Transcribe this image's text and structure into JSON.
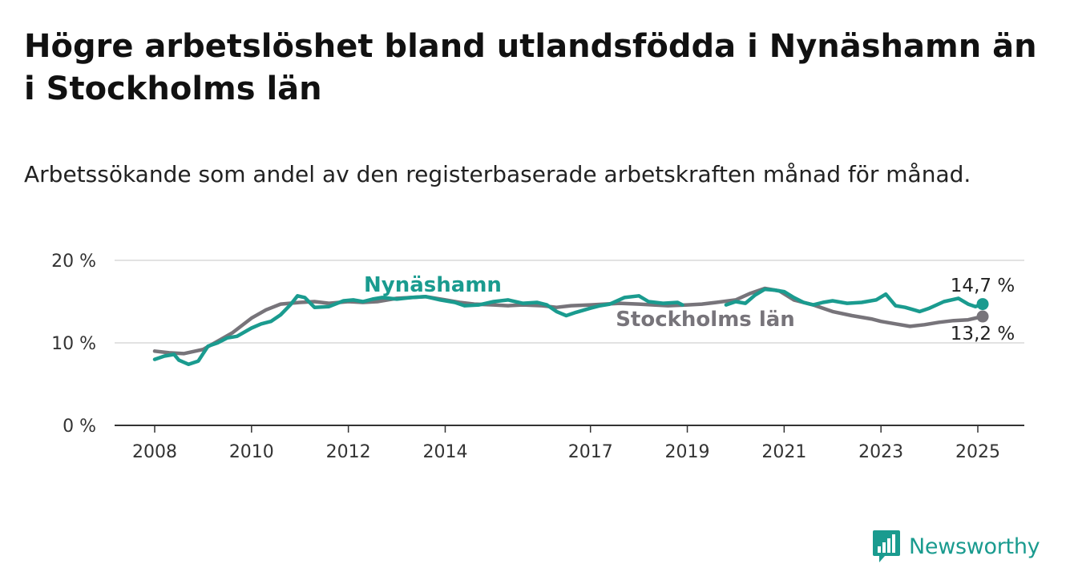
{
  "title": "Högre arbetslöshet bland utlandsfödda i Nynäshamn än i Stockholms län",
  "subtitle": "Arbetssökande som andel av den registerbaserade arbetskraften månad för månad.",
  "brand": {
    "name": "Newsworthy",
    "icon": "newsworthy-logo-icon",
    "color": "#1a9b8f"
  },
  "chart_data": {
    "type": "line",
    "x_range": [
      2008.0,
      2025.1
    ],
    "ylim": [
      0,
      20
    ],
    "y_ticks": [
      0,
      10,
      20
    ],
    "y_tick_labels": [
      "0 %",
      "10 %",
      "20 %"
    ],
    "x_ticks": [
      2008,
      2010,
      2012,
      2014,
      2017,
      2019,
      2021,
      2023,
      2025
    ],
    "x_tick_labels": [
      "2008",
      "2010",
      "2012",
      "2014",
      "2017",
      "2019",
      "2021",
      "2023",
      "2025"
    ],
    "grid": "horizontal",
    "series": [
      {
        "name": "Stockholms län",
        "color": "#77747a",
        "end_label": "13,2 %",
        "points": [
          [
            2008.0,
            9.0
          ],
          [
            2008.3,
            8.8
          ],
          [
            2008.6,
            8.7
          ],
          [
            2009.0,
            9.2
          ],
          [
            2009.3,
            10.2
          ],
          [
            2009.6,
            11.2
          ],
          [
            2010.0,
            13.0
          ],
          [
            2010.3,
            14.0
          ],
          [
            2010.6,
            14.7
          ],
          [
            2011.0,
            14.9
          ],
          [
            2011.3,
            15.0
          ],
          [
            2011.6,
            14.8
          ],
          [
            2012.0,
            15.0
          ],
          [
            2012.3,
            14.9
          ],
          [
            2012.6,
            15.0
          ],
          [
            2013.0,
            15.4
          ],
          [
            2013.3,
            15.5
          ],
          [
            2013.6,
            15.6
          ],
          [
            2014.0,
            15.2
          ],
          [
            2014.3,
            14.9
          ],
          [
            2014.6,
            14.7
          ],
          [
            2015.0,
            14.6
          ],
          [
            2015.3,
            14.5
          ],
          [
            2015.6,
            14.6
          ],
          [
            2016.0,
            14.5
          ],
          [
            2016.3,
            14.3
          ],
          [
            2016.6,
            14.5
          ],
          [
            2017.0,
            14.6
          ],
          [
            2017.3,
            14.7
          ],
          [
            2017.6,
            14.8
          ],
          [
            2018.0,
            14.7
          ],
          [
            2018.3,
            14.6
          ],
          [
            2018.6,
            14.5
          ],
          [
            2019.0,
            14.6
          ],
          [
            2019.3,
            14.7
          ],
          [
            2019.6,
            14.9
          ],
          [
            2020.0,
            15.2
          ],
          [
            2020.3,
            16.0
          ],
          [
            2020.6,
            16.6
          ],
          [
            2020.9,
            16.3
          ],
          [
            2021.2,
            15.2
          ],
          [
            2021.6,
            14.6
          ],
          [
            2022.0,
            13.8
          ],
          [
            2022.4,
            13.3
          ],
          [
            2022.8,
            12.9
          ],
          [
            2023.0,
            12.6
          ],
          [
            2023.3,
            12.3
          ],
          [
            2023.6,
            12.0
          ],
          [
            2023.9,
            12.2
          ],
          [
            2024.2,
            12.5
          ],
          [
            2024.5,
            12.7
          ],
          [
            2024.8,
            12.8
          ],
          [
            2025.1,
            13.2
          ]
        ]
      },
      {
        "name": "Nynäshamn",
        "color": "#1a9b8f",
        "end_label": "14,7 %",
        "points": [
          [
            2008.0,
            8.0
          ],
          [
            2008.2,
            8.4
          ],
          [
            2008.4,
            8.6
          ],
          [
            2008.5,
            7.9
          ],
          [
            2008.7,
            7.4
          ],
          [
            2008.9,
            7.8
          ],
          [
            2009.1,
            9.6
          ],
          [
            2009.3,
            10.0
          ],
          [
            2009.5,
            10.6
          ],
          [
            2009.7,
            10.8
          ],
          [
            2010.0,
            11.8
          ],
          [
            2010.2,
            12.3
          ],
          [
            2010.4,
            12.6
          ],
          [
            2010.6,
            13.4
          ],
          [
            2010.8,
            14.6
          ],
          [
            2010.95,
            15.7
          ],
          [
            2011.1,
            15.5
          ],
          [
            2011.3,
            14.3
          ],
          [
            2011.6,
            14.4
          ],
          [
            2011.9,
            15.1
          ],
          [
            2012.1,
            15.2
          ],
          [
            2012.3,
            15.0
          ],
          [
            2012.5,
            15.3
          ],
          [
            2012.7,
            15.5
          ],
          [
            2013.0,
            15.3
          ],
          [
            2013.3,
            15.5
          ],
          [
            2013.6,
            15.6
          ],
          [
            2013.9,
            15.2
          ],
          [
            2014.2,
            14.9
          ],
          [
            2014.4,
            14.5
          ],
          [
            2014.7,
            14.6
          ],
          [
            2015.0,
            15.0
          ],
          [
            2015.3,
            15.2
          ],
          [
            2015.6,
            14.8
          ],
          [
            2015.9,
            14.9
          ],
          [
            2016.1,
            14.6
          ],
          [
            2016.3,
            13.8
          ],
          [
            2016.5,
            13.3
          ],
          [
            2016.7,
            13.7
          ],
          [
            2017.0,
            14.2
          ],
          [
            2017.2,
            14.5
          ],
          [
            2017.4,
            14.7
          ],
          [
            2017.7,
            15.5
          ],
          [
            2018.0,
            15.7
          ],
          [
            2018.2,
            15.0
          ],
          [
            2018.5,
            14.8
          ],
          [
            2018.8,
            14.9
          ],
          [
            2018.9,
            14.6
          ],
          [
            2019.8,
            14.6
          ],
          [
            2020.0,
            15.0
          ],
          [
            2020.2,
            14.8
          ],
          [
            2020.4,
            15.8
          ],
          [
            2020.6,
            16.5
          ],
          [
            2020.8,
            16.4
          ],
          [
            2021.0,
            16.2
          ],
          [
            2021.2,
            15.5
          ],
          [
            2021.4,
            14.9
          ],
          [
            2021.6,
            14.6
          ],
          [
            2021.8,
            14.9
          ],
          [
            2022.0,
            15.1
          ],
          [
            2022.3,
            14.8
          ],
          [
            2022.6,
            14.9
          ],
          [
            2022.9,
            15.2
          ],
          [
            2023.1,
            15.9
          ],
          [
            2023.3,
            14.5
          ],
          [
            2023.5,
            14.3
          ],
          [
            2023.8,
            13.8
          ],
          [
            2024.0,
            14.2
          ],
          [
            2024.3,
            15.0
          ],
          [
            2024.6,
            15.4
          ],
          [
            2024.8,
            14.7
          ],
          [
            2024.95,
            14.4
          ],
          [
            2025.1,
            14.7
          ]
        ]
      }
    ]
  }
}
